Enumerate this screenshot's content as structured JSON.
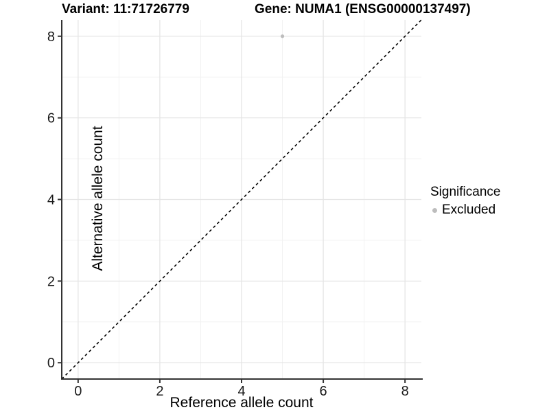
{
  "titles": {
    "variant": "Variant: 11:71726779",
    "gene": "Gene: NUMA1 (ENSG00000137497)"
  },
  "chart_data": {
    "type": "scatter",
    "title_left": "Variant: 11:71726779",
    "title_right": "Gene: NUMA1 (ENSG00000137497)",
    "xlabel": "Reference allele count",
    "ylabel": "Alternative allele count",
    "xlim": [
      -0.4,
      8.4
    ],
    "ylim": [
      -0.4,
      8.4
    ],
    "x_ticks": [
      0,
      2,
      4,
      6,
      8
    ],
    "y_ticks": [
      0,
      2,
      4,
      6,
      8
    ],
    "x_minor_ticks": [
      1,
      3,
      5,
      7
    ],
    "y_minor_ticks": [
      1,
      3,
      5,
      7
    ],
    "grid": true,
    "points": [
      {
        "x": 5,
        "y": 8,
        "series": "Excluded",
        "color": "#bdbdbd",
        "radius": 2.6
      }
    ],
    "reference_line": {
      "type": "identity",
      "style": "dashed",
      "color": "#000000",
      "dash": [
        4,
        4
      ]
    },
    "legend": {
      "title": "Significance",
      "position": "right",
      "items": [
        {
          "label": "Excluded",
          "color": "#bdbdbd",
          "marker": "circle"
        }
      ]
    }
  }
}
